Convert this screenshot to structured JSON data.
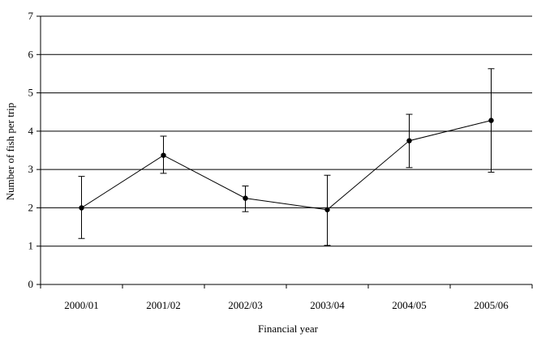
{
  "chart_data": {
    "type": "line",
    "title": "",
    "xlabel": "Financial year",
    "ylabel": "Number of fish per trip",
    "categories": [
      "2000/01",
      "2001/02",
      "2002/03",
      "2003/04",
      "2004/05",
      "2005/06"
    ],
    "ylim": [
      0,
      7
    ],
    "yticks": [
      "0",
      "1",
      "2",
      "3",
      "4",
      "5",
      "6",
      "7"
    ],
    "grid": "horizontal",
    "legend": "none",
    "series": [
      {
        "values": [
          2.0,
          3.37,
          2.25,
          1.95,
          3.75,
          4.28
        ],
        "error_low": [
          1.2,
          2.9,
          1.9,
          1.02,
          3.05,
          2.93
        ],
        "error_high": [
          2.82,
          3.87,
          2.57,
          2.85,
          4.44,
          5.63
        ],
        "color": "#000000"
      }
    ]
  }
}
